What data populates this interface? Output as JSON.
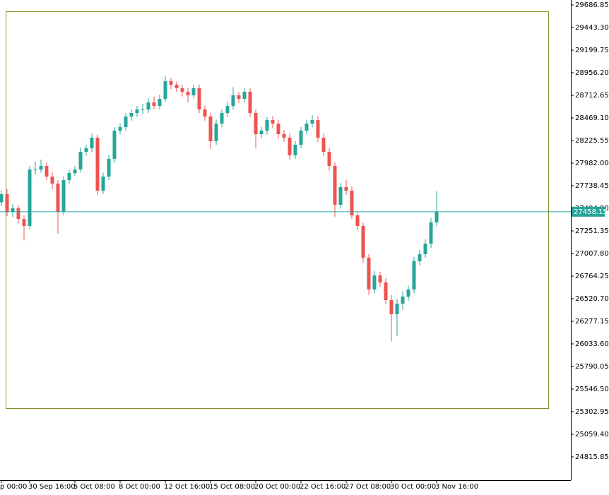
{
  "chart_data": {
    "type": "candlestick",
    "categories": [
      "p 00:00",
      null,
      null,
      null,
      null,
      "30 Sep 16:00",
      null,
      null,
      null,
      null,
      null,
      null,
      null,
      "5 Oct 08:00",
      null,
      null,
      null,
      null,
      null,
      null,
      null,
      "8 Oct 00:00",
      null,
      null,
      null,
      null,
      null,
      null,
      null,
      "12 Oct 16:00",
      null,
      null,
      null,
      null,
      null,
      null,
      null,
      "15 Oct 08:00",
      null,
      null,
      null,
      null,
      null,
      null,
      null,
      "20 Oct 00:00",
      null,
      null,
      null,
      null,
      null,
      null,
      null,
      "22 Oct 16:00",
      null,
      null,
      null,
      null,
      null,
      null,
      null,
      "27 Oct 08:00",
      null,
      null,
      null,
      null,
      null,
      null,
      null,
      "30 Oct 00:00",
      null,
      null,
      null,
      null,
      null,
      null,
      null,
      "3 Nov 16:00"
    ],
    "open": [
      27560,
      27647,
      27457,
      27495,
      27380,
      27305,
      27913,
      27913,
      27951,
      27837,
      27761,
      27457,
      27799,
      27875,
      27913,
      28104,
      28142,
      28256,
      27685,
      27837,
      28028,
      28332,
      28370,
      28484,
      28522,
      28560,
      28560,
      28636,
      28598,
      28674,
      28865,
      28827,
      28789,
      28751,
      28713,
      28789,
      28560,
      28484,
      28218,
      28408,
      28522,
      28598,
      28713,
      28675,
      28751,
      28522,
      28294,
      28332,
      28446,
      28408,
      28294,
      28256,
      28066,
      28180,
      28332,
      28408,
      28446,
      28256,
      28104,
      27952,
      27533,
      27723,
      27685,
      27419,
      27305,
      26962,
      26620,
      26772,
      26696,
      26505,
      26353,
      26467,
      26543,
      26620,
      26924,
      27000,
      27114,
      27343
    ],
    "high": [
      27690,
      27700,
      27540,
      27530,
      27420,
      27950,
      28000,
      28020,
      27990,
      27880,
      27800,
      27840,
      27910,
      27950,
      28150,
      28180,
      28300,
      28290,
      27880,
      28070,
      28370,
      28410,
      28520,
      28560,
      28600,
      28620,
      28680,
      28700,
      28720,
      28920,
      28900,
      28860,
      28830,
      28790,
      28830,
      28830,
      28600,
      28520,
      28450,
      28560,
      28640,
      28800,
      28750,
      28790,
      28790,
      28560,
      28370,
      28480,
      28490,
      28450,
      28340,
      28300,
      28220,
      28370,
      28450,
      28500,
      28490,
      28300,
      28150,
      27990,
      27770,
      27800,
      27730,
      27450,
      27340,
      27000,
      26820,
      26810,
      26740,
      26560,
      26520,
      26600,
      26660,
      26970,
      27050,
      27160,
      27390,
      27680
    ],
    "low": [
      27520,
      27410,
      27400,
      27330,
      27150,
      27270,
      27860,
      27880,
      27800,
      27700,
      27220,
      27420,
      27760,
      27840,
      27880,
      28060,
      28100,
      27640,
      27650,
      27800,
      27990,
      28290,
      28330,
      28440,
      28480,
      28510,
      28520,
      28560,
      28560,
      28640,
      28780,
      28750,
      28700,
      28640,
      28680,
      28520,
      28440,
      28130,
      28180,
      28370,
      28480,
      28560,
      28630,
      28640,
      28480,
      28140,
      28250,
      28290,
      28360,
      28250,
      28210,
      28020,
      28030,
      28140,
      28290,
      28370,
      28210,
      28060,
      27900,
      27400,
      27490,
      27640,
      27380,
      27260,
      26910,
      26560,
      26580,
      26650,
      26460,
      26060,
      26120,
      26400,
      26500,
      26580,
      26880,
      26960,
      27070,
      27300
    ],
    "close": [
      27647,
      27457,
      27495,
      27380,
      27305,
      27913,
      27913,
      27951,
      27837,
      27761,
      27457,
      27799,
      27875,
      27913,
      28104,
      28142,
      28256,
      27685,
      27837,
      28028,
      28332,
      28370,
      28484,
      28522,
      28560,
      28560,
      28636,
      28598,
      28674,
      28865,
      28827,
      28789,
      28751,
      28713,
      28789,
      28560,
      28484,
      28218,
      28408,
      28522,
      28598,
      28713,
      28675,
      28751,
      28522,
      28294,
      28332,
      28446,
      28408,
      28294,
      28256,
      28066,
      28180,
      28332,
      28408,
      28446,
      28256,
      28104,
      27952,
      27533,
      27723,
      27685,
      27419,
      27305,
      26962,
      26620,
      26772,
      26696,
      26505,
      26353,
      26467,
      26543,
      26620,
      26924,
      27000,
      27114,
      27343,
      27458
    ],
    "up_color": "#26a69a",
    "down_color": "#ef5350",
    "last_price": 27458.15,
    "last_price_color": "#26a69a",
    "ylim": [
      24564.7,
      29740.1
    ],
    "yticks": [
      29686.85,
      {
        "value": 29443.3,
        "label": "29443.30"
      },
      29199.75,
      {
        "value": 28956.2,
        "label": "28956.20"
      },
      28712.65,
      {
        "value": 28469.1,
        "label": "28469.10"
      },
      28225.55,
      {
        "value": 27982,
        "label": "27982.00"
      },
      27738.45,
      {
        "value": 27494.9,
        "label": "27494.90"
      },
      27251.35,
      {
        "value": 27007.8,
        "label": "27007.80"
      },
      26764.25,
      {
        "value": 26520.7,
        "label": "26520.70"
      },
      26277.15,
      {
        "value": 26033.6,
        "label": "26033.60"
      },
      25790.05,
      {
        "value": 25546.5,
        "label": "25546.50"
      },
      25302.95,
      {
        "value": 25059.4,
        "label": "25059.40"
      },
      24815.85
    ]
  }
}
